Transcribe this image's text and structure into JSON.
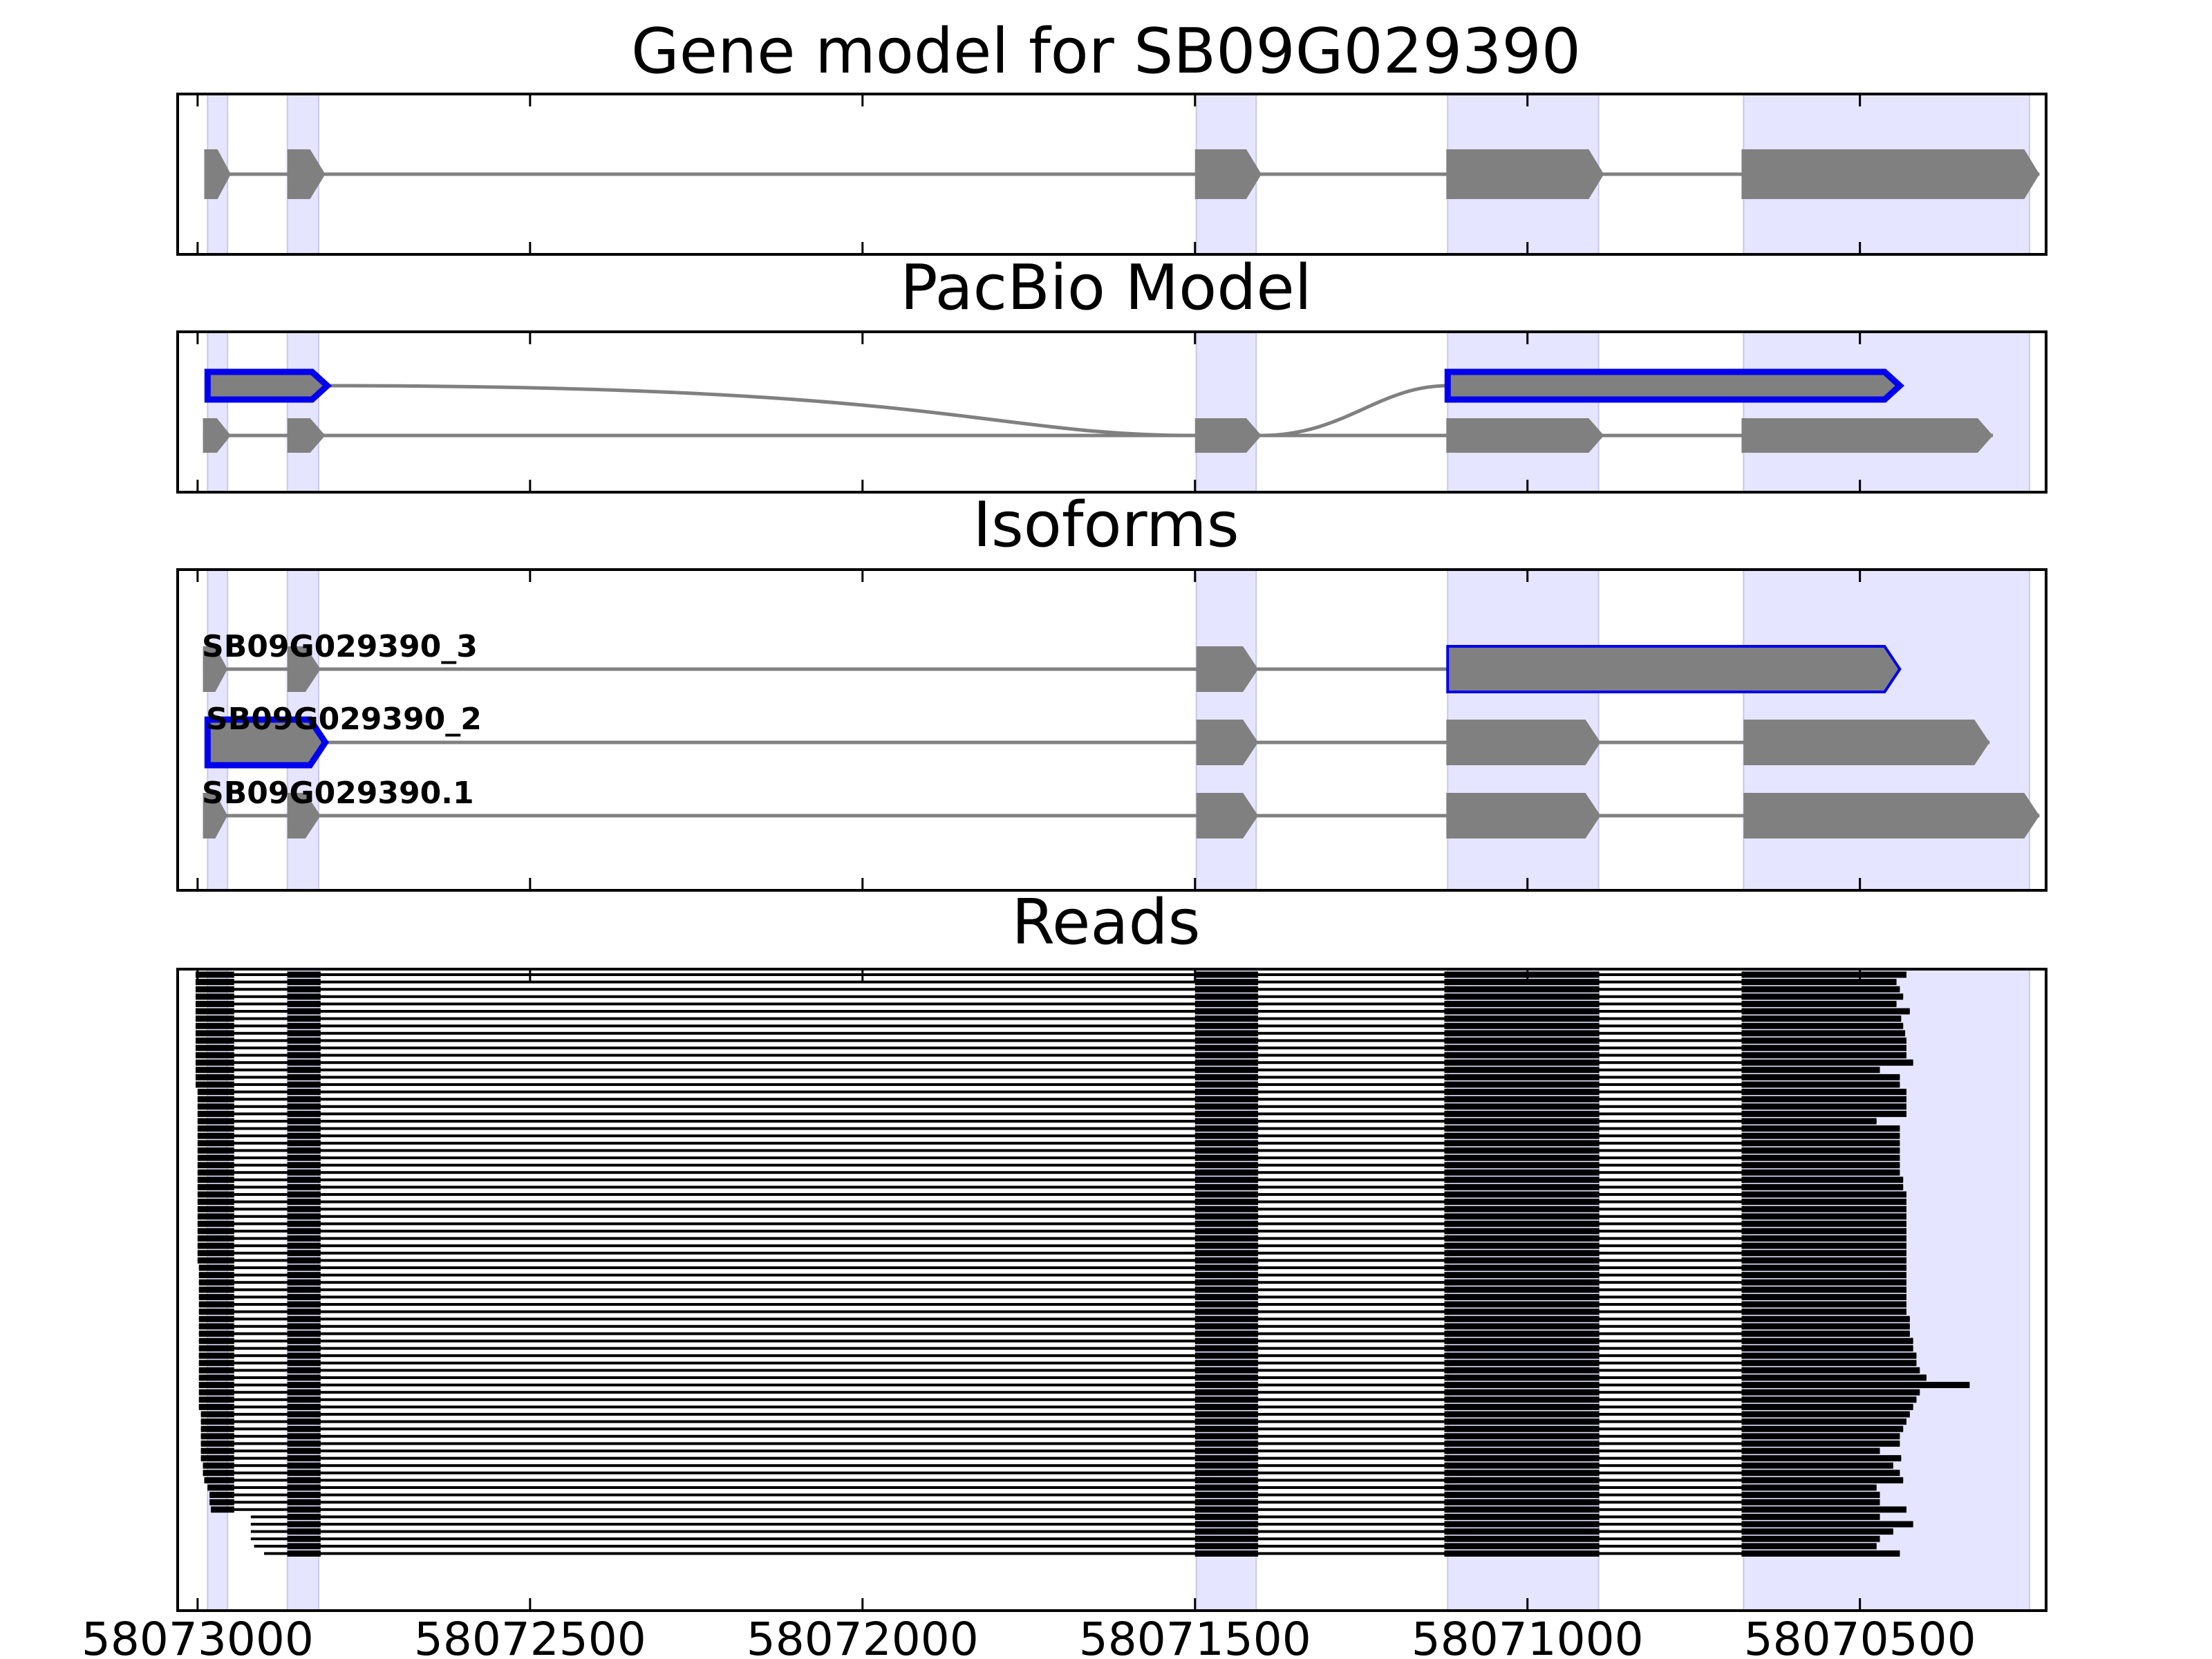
{
  "chart_data": {
    "type": "gene-model",
    "x_axis": {
      "reversed": true,
      "range": [
        58073030,
        58070220
      ],
      "ticks": [
        58073000,
        58072500,
        58072000,
        58071500,
        58071000,
        58070500
      ],
      "tick_labels": [
        "58073000",
        "58072500",
        "58072000",
        "58071500",
        "58071000",
        "58070500"
      ]
    },
    "highlight_regions": [
      [
        58072985,
        58072955
      ],
      [
        58072865,
        58072818
      ],
      [
        58071498,
        58071408
      ],
      [
        58071120,
        58070893
      ],
      [
        58070675,
        58070245
      ]
    ],
    "colors": {
      "highlight": "#e5e5ff",
      "exon": "#808080",
      "selected_outline": "#0000ee",
      "read": "#000000",
      "intron_line": "#808080"
    },
    "panels": [
      {
        "title": "Gene model for SB09G029390",
        "type": "gene_model",
        "tracks": [
          {
            "exons": [
              [
                58072990,
                58072950
              ],
              [
                58072865,
                58072808
              ],
              [
                58071500,
                58071400
              ],
              [
                58071122,
                58070885
              ],
              [
                58070678,
                58070230
              ]
            ]
          }
        ]
      },
      {
        "title": "PacBio Model",
        "type": "pacbio",
        "tracks": [
          {
            "selected": true,
            "exons": [
              [
                58072985,
                58072805
              ],
              [
                58071120,
                58070440
              ]
            ],
            "connector": "curve"
          },
          {
            "exons": [
              [
                58072992,
                58072950
              ],
              [
                58072865,
                58072808
              ],
              [
                58071500,
                58071400
              ],
              [
                58071122,
                58070885
              ],
              [
                58070678,
                58070300
              ]
            ]
          }
        ]
      },
      {
        "title": "Isoforms",
        "type": "isoforms",
        "tracks": [
          {
            "label": "SB09G029390_3",
            "exons": [
              [
                58072992,
                58072955
              ],
              [
                58072865,
                58072815
              ],
              [
                58071498,
                58071405
              ],
              [
                58071120,
                58070440
              ]
            ],
            "selected_exons": [
              3
            ]
          },
          {
            "label": "SB09G029390_2",
            "exons": [
              [
                58072985,
                58072808
              ],
              [
                58071498,
                58071405
              ],
              [
                58071122,
                58070890
              ],
              [
                58070675,
                58070305
              ]
            ],
            "selected_exons": [
              0
            ]
          },
          {
            "label": "SB09G029390.1",
            "exons": [
              [
                58072992,
                58072955
              ],
              [
                58072865,
                58072815
              ],
              [
                58071498,
                58071405
              ],
              [
                58071122,
                58070890
              ],
              [
                58070675,
                58070230
              ]
            ]
          }
        ]
      },
      {
        "title": "Reads",
        "type": "reads",
        "read_count": 80,
        "read_exon_blocks": [
          [
            58072865,
            58072815
          ],
          [
            58071500,
            58071405
          ],
          [
            58071125,
            58070892
          ]
        ],
        "read_first_block_end": 58072945,
        "read_last_block_start": 58070678,
        "read_starts": [
          58073003,
          58073003,
          58073003,
          58073003,
          58073003,
          58073003,
          58073003,
          58073003,
          58073003,
          58073003,
          58073003,
          58073003,
          58073003,
          58073003,
          58073003,
          58073003,
          58073000,
          58073000,
          58073000,
          58073000,
          58073000,
          58073000,
          58073000,
          58073000,
          58073000,
          58073000,
          58073000,
          58073000,
          58073000,
          58073000,
          58073000,
          58073000,
          58073000,
          58073000,
          58073000,
          58073000,
          58073000,
          58073000,
          58073000,
          58073000,
          58072998,
          58072998,
          58072998,
          58072998,
          58072998,
          58072998,
          58072998,
          58072998,
          58072998,
          58072998,
          58072998,
          58072998,
          58072998,
          58072998,
          58072998,
          58072998,
          58072998,
          58072998,
          58072998,
          58072998,
          58072995,
          58072995,
          58072995,
          58072995,
          58072995,
          58072995,
          58072995,
          58072992,
          58072992,
          58072990,
          58072985,
          58072982,
          58072982,
          58072980,
          58072920,
          58072920,
          58072920,
          58072920,
          58072915,
          58072900
        ],
        "read_ends": [
          58070430,
          58070445,
          58070440,
          58070435,
          58070445,
          58070425,
          58070438,
          58070435,
          58070432,
          58070430,
          58070430,
          58070430,
          58070420,
          58070470,
          58070440,
          58070440,
          58070430,
          58070430,
          58070430,
          58070430,
          58070475,
          58070440,
          58070440,
          58070440,
          58070440,
          58070440,
          58070440,
          58070440,
          58070435,
          58070435,
          58070430,
          58070430,
          58070430,
          58070430,
          58070430,
          58070430,
          58070430,
          58070430,
          58070430,
          58070430,
          58070430,
          58070430,
          58070430,
          58070430,
          58070430,
          58070430,
          58070430,
          58070425,
          58070425,
          58070425,
          58070420,
          58070420,
          58070415,
          58070415,
          58070410,
          58070400,
          58070335,
          58070410,
          58070415,
          58070420,
          58070425,
          58070430,
          58070435,
          58070440,
          58070440,
          58070470,
          58070438,
          58070450,
          58070440,
          58070435,
          58070475,
          58070470,
          58070470,
          58070430,
          58070470,
          58070420,
          58070450,
          58070470,
          58070475,
          58070440
        ],
        "read_last_block_ends": [
          58070430,
          58070445,
          58070440,
          58070435,
          58070445,
          58070425,
          58070438,
          58070435,
          58070432,
          58070430,
          58070430,
          58070430,
          58070420,
          58070470,
          58070440,
          58070440,
          58070430,
          58070430,
          58070430,
          58070430,
          58070475,
          58070440,
          58070440,
          58070440,
          58070440,
          58070440,
          58070440,
          58070440,
          58070435,
          58070435,
          58070430,
          58070430,
          58070430,
          58070430,
          58070430,
          58070430,
          58070430,
          58070430,
          58070430,
          58070430,
          58070430,
          58070430,
          58070430,
          58070430,
          58070430,
          58070430,
          58070430,
          58070425,
          58070425,
          58070425,
          58070420,
          58070420,
          58070415,
          58070415,
          58070410,
          58070400,
          58070335,
          58070410,
          58070415,
          58070420,
          58070425,
          58070430,
          58070435,
          58070440,
          58070440,
          58070470,
          58070438,
          58070450,
          58070440,
          58070435,
          58070475,
          58070470,
          58070470,
          58070430,
          58070470,
          58070420,
          58070450,
          58070470,
          58070475,
          58070440
        ]
      }
    ]
  }
}
